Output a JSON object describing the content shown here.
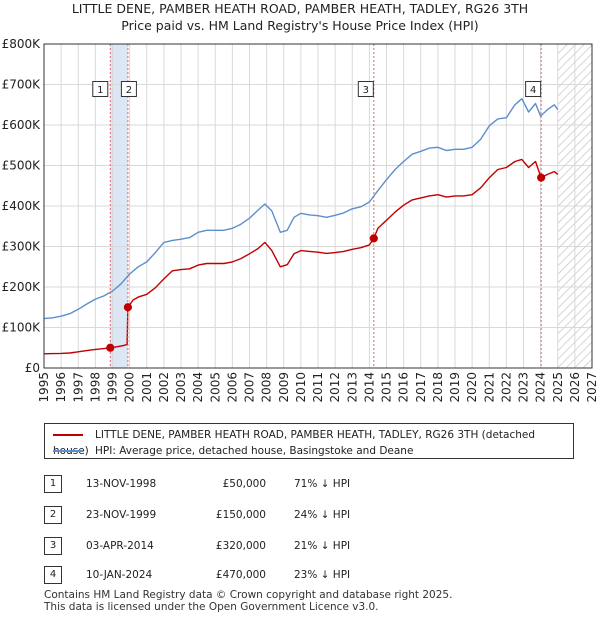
{
  "title_line1": "LITTLE DENE, PAMBER HEATH ROAD, PAMBER HEATH, TADLEY, RG26 3TH",
  "title_line2": "Price paid vs. HM Land Registry's House Price Index (HPI)",
  "chart_data": {
    "type": "line",
    "title": "LITTLE DENE, PAMBER HEATH ROAD, PAMBER HEATH, TADLEY, RG26 3TH — Price paid vs. HM Land Registry's House Price Index (HPI)",
    "xlabel": "",
    "ylabel": "",
    "xlim": [
      1995,
      2027
    ],
    "ylim": [
      0,
      800000
    ],
    "x_ticks": [
      1995,
      1996,
      1997,
      1998,
      1999,
      2000,
      2001,
      2002,
      2003,
      2004,
      2005,
      2006,
      2007,
      2008,
      2009,
      2010,
      2011,
      2012,
      2013,
      2014,
      2015,
      2016,
      2017,
      2018,
      2019,
      2020,
      2021,
      2022,
      2023,
      2024,
      2025,
      2026,
      2027
    ],
    "y_ticks": [
      {
        "value": 0,
        "label": "£0"
      },
      {
        "value": 100000,
        "label": "£100K"
      },
      {
        "value": 200000,
        "label": "£200K"
      },
      {
        "value": 300000,
        "label": "£300K"
      },
      {
        "value": 400000,
        "label": "£400K"
      },
      {
        "value": 500000,
        "label": "£500K"
      },
      {
        "value": 600000,
        "label": "£600K"
      },
      {
        "value": 700000,
        "label": "£700K"
      },
      {
        "value": 800000,
        "label": "£800K"
      }
    ],
    "grid": true,
    "forecast_hatch_from": 2025.0,
    "shaded_span": [
      1998.87,
      1999.9
    ],
    "series": [
      {
        "name": "HPI: Average price, detached house, Basingstoke and Deane",
        "color": "#5b8fce",
        "x": [
          1995,
          1995.5,
          1996,
          1996.5,
          1997,
          1997.5,
          1998,
          1998.5,
          1999,
          1999.5,
          2000,
          2000.5,
          2001,
          2001.5,
          2002,
          2002.5,
          2003,
          2003.5,
          2004,
          2004.5,
          2005,
          2005.5,
          2006,
          2006.5,
          2007,
          2007.5,
          2007.9,
          2008.3,
          2008.8,
          2009.2,
          2009.6,
          2010,
          2010.5,
          2011,
          2011.5,
          2012,
          2012.5,
          2013,
          2013.5,
          2014,
          2014.5,
          2015,
          2015.5,
          2016,
          2016.5,
          2017,
          2017.5,
          2018,
          2018.5,
          2019,
          2019.5,
          2020,
          2020.5,
          2021,
          2021.5,
          2022,
          2022.5,
          2022.9,
          2023.3,
          2023.7,
          2024,
          2024.4,
          2024.8,
          2025
        ],
        "values": [
          122000,
          124000,
          128000,
          134000,
          145000,
          158000,
          170000,
          178000,
          190000,
          208000,
          232000,
          250000,
          262000,
          285000,
          310000,
          315000,
          318000,
          322000,
          335000,
          340000,
          340000,
          340000,
          345000,
          355000,
          370000,
          390000,
          405000,
          388000,
          335000,
          340000,
          372000,
          382000,
          378000,
          376000,
          372000,
          377000,
          383000,
          393000,
          398000,
          410000,
          438000,
          465000,
          490000,
          510000,
          528000,
          535000,
          543000,
          545000,
          537000,
          540000,
          540000,
          545000,
          565000,
          598000,
          615000,
          618000,
          650000,
          665000,
          632000,
          653000,
          622000,
          638000,
          650000,
          638000
        ]
      },
      {
        "name": "LITTLE DENE, PAMBER HEATH ROAD, PAMBER HEATH, TADLEY, RG26 3TH (detached house)",
        "color": "#c00000",
        "x": [
          1995,
          1995.5,
          1996,
          1996.5,
          1997,
          1997.5,
          1998,
          1998.5,
          1998.87,
          1999.2,
          1999.6,
          1999.85,
          1999.9,
          2000.2,
          2000.5,
          2001,
          2001.5,
          2002,
          2002.5,
          2003,
          2003.5,
          2004,
          2004.5,
          2005,
          2005.5,
          2006,
          2006.5,
          2007,
          2007.5,
          2007.9,
          2008.3,
          2008.8,
          2009.2,
          2009.6,
          2010,
          2010.5,
          2011,
          2011.5,
          2012,
          2012.5,
          2013,
          2013.5,
          2014,
          2014.26,
          2014.5,
          2015,
          2015.5,
          2016,
          2016.5,
          2017,
          2017.5,
          2018,
          2018.5,
          2019,
          2019.5,
          2020,
          2020.5,
          2021,
          2021.5,
          2022,
          2022.5,
          2022.9,
          2023.3,
          2023.7,
          2024.03,
          2024.4,
          2024.8,
          2025
        ],
        "values": [
          35000,
          35500,
          36000,
          37000,
          40000,
          43000,
          46000,
          48000,
          50000,
          52000,
          55000,
          58000,
          150000,
          168000,
          175000,
          182000,
          198000,
          220000,
          240000,
          243000,
          245000,
          254000,
          258000,
          258000,
          258000,
          262000,
          270000,
          282000,
          295000,
          310000,
          290000,
          250000,
          255000,
          282000,
          290000,
          288000,
          286000,
          283000,
          285000,
          288000,
          293000,
          297000,
          304000,
          320000,
          345000,
          365000,
          385000,
          402000,
          415000,
          420000,
          425000,
          428000,
          422000,
          425000,
          425000,
          428000,
          445000,
          470000,
          490000,
          495000,
          510000,
          515000,
          495000,
          510000,
          470000,
          478000,
          485000,
          478000
        ]
      }
    ],
    "sales": [
      {
        "id": "1",
        "date": "13-NOV-1998",
        "price": "£50,000",
        "delta": "71% ↓ HPI",
        "x": 1998.87,
        "value": 50000
      },
      {
        "id": "2",
        "date": "23-NOV-1999",
        "price": "£150,000",
        "delta": "24% ↓ HPI",
        "x": 1999.9,
        "value": 150000
      },
      {
        "id": "3",
        "date": "03-APR-2014",
        "price": "£320,000",
        "delta": "21% ↓ HPI",
        "x": 2014.26,
        "value": 320000
      },
      {
        "id": "4",
        "date": "10-JAN-2024",
        "price": "£470,000",
        "delta": "23% ↓ HPI",
        "x": 2024.03,
        "value": 470000
      }
    ],
    "legend": {
      "property": "LITTLE DENE, PAMBER HEATH ROAD, PAMBER HEATH, TADLEY, RG26 3TH (detached house)",
      "hpi": "HPI: Average price, detached house, Basingstoke and Deane",
      "property_color": "#c00000",
      "hpi_color": "#5b8fce"
    }
  },
  "footer_line1": "Contains HM Land Registry data © Crown copyright and database right 2025.",
  "footer_line2": "This data is licensed under the Open Government Licence v3.0."
}
